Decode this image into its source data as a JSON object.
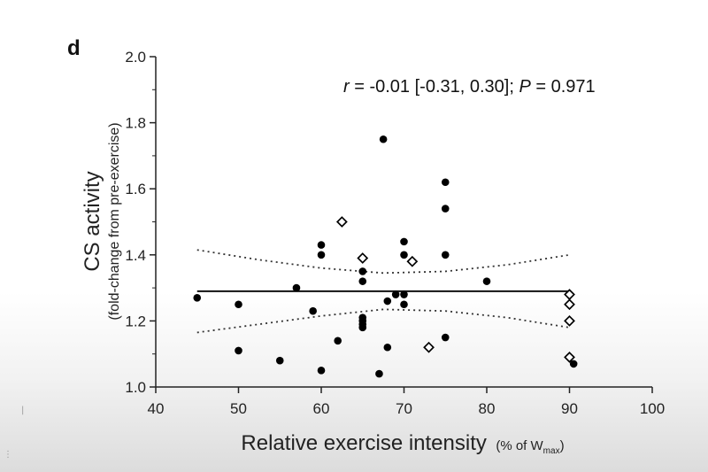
{
  "chart_data": {
    "type": "scatter",
    "panel_label": "d",
    "annotation": {
      "r_symbol": "r",
      "r_text": " = -0.01 [-0.31, 0.30]; ",
      "p_symbol": "P",
      "p_text": " = 0.971"
    },
    "xlabel": "Relative exercise intensity",
    "xlabel_unit_prefix": "(% of W",
    "xlabel_unit_sub": "max",
    "xlabel_unit_suffix": ")",
    "ylabel": "CS activity",
    "ylabel_sub": "(fold-change from pre-exercise)",
    "xlim": [
      40,
      100
    ],
    "ylim": [
      1.0,
      2.0
    ],
    "x_ticks": [
      "40",
      "50",
      "60",
      "70",
      "80",
      "90",
      "100"
    ],
    "y_ticks": [
      "1.0",
      "1.2",
      "1.4",
      "1.6",
      "1.8",
      "2.0"
    ],
    "grid": false,
    "series": [
      {
        "marker": "filled-circle",
        "color": "#000000",
        "points": [
          [
            45,
            1.27
          ],
          [
            50,
            1.25
          ],
          [
            50,
            1.11
          ],
          [
            55,
            1.08
          ],
          [
            57,
            1.3
          ],
          [
            59,
            1.23
          ],
          [
            60,
            1.43
          ],
          [
            60,
            1.4
          ],
          [
            60,
            1.05
          ],
          [
            62,
            1.14
          ],
          [
            65,
            1.35
          ],
          [
            65,
            1.32
          ],
          [
            65,
            1.21
          ],
          [
            65,
            1.2
          ],
          [
            65,
            1.19
          ],
          [
            65,
            1.18
          ],
          [
            67,
            1.04
          ],
          [
            67.5,
            1.75
          ],
          [
            68,
            1.26
          ],
          [
            68,
            1.12
          ],
          [
            69,
            1.28
          ],
          [
            70,
            1.44
          ],
          [
            70,
            1.4
          ],
          [
            70,
            1.28
          ],
          [
            70,
            1.25
          ],
          [
            75,
            1.62
          ],
          [
            75,
            1.54
          ],
          [
            75,
            1.4
          ],
          [
            75,
            1.15
          ],
          [
            80,
            1.32
          ],
          [
            90.5,
            1.07
          ]
        ]
      },
      {
        "marker": "open-diamond",
        "color": "#000000",
        "points": [
          [
            62.5,
            1.5
          ],
          [
            65,
            1.39
          ],
          [
            71,
            1.38
          ],
          [
            73,
            1.12
          ],
          [
            90,
            1.28
          ],
          [
            90,
            1.25
          ],
          [
            90,
            1.2
          ],
          [
            90,
            1.09
          ]
        ]
      }
    ],
    "regression": {
      "x": [
        45,
        90
      ],
      "fit": [
        1.29,
        1.29
      ],
      "ci_x": [
        45,
        52.5,
        60,
        67.5,
        75,
        82.5,
        90
      ],
      "ci_upper": [
        1.415,
        1.385,
        1.36,
        1.345,
        1.35,
        1.37,
        1.4
      ],
      "ci_lower": [
        1.165,
        1.19,
        1.215,
        1.235,
        1.23,
        1.21,
        1.18
      ]
    }
  }
}
